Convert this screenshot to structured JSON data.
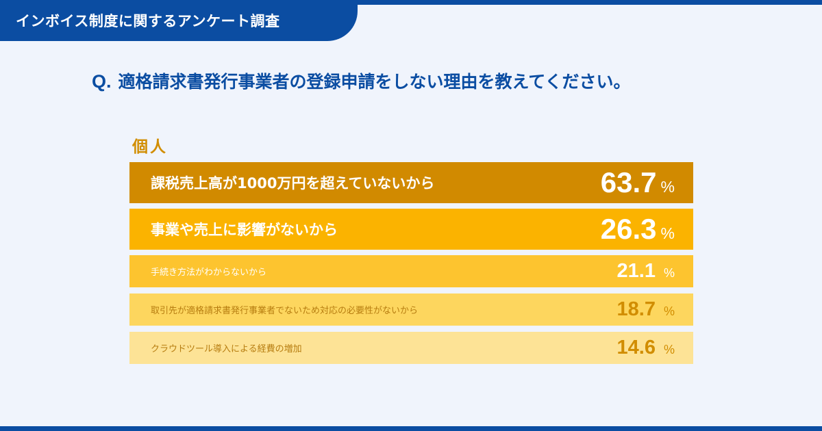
{
  "header": {
    "title": "インボイス制度に関するアンケート調査"
  },
  "question": {
    "prefix": "Q.",
    "text": "適格請求書発行事業者の登録申請をしない理由を教えてください。"
  },
  "group": {
    "label": "個人"
  },
  "colors": {
    "brand_blue": "#0b4da2",
    "background": "#f0f4fc",
    "accent_orange": "#d18d00",
    "bar_1": "#d18a00",
    "bar_2": "#fbb300",
    "bar_3": "#fdc42f",
    "bar_4": "#fdd65e",
    "bar_5": "#fde396",
    "text_dark_value": "#d18d00"
  },
  "chart_data": {
    "type": "bar",
    "unit": "%",
    "categories": [
      "課税売上高が1000万円を超えていないから",
      "事業や売上に影響がないから",
      "手続き方法がわからないから",
      "取引先が適格請求書発行事業者でないため対応の必要性がないから",
      "クラウドツール導入による経費の増加"
    ],
    "values": [
      63.7,
      26.3,
      21.1,
      18.7,
      14.6
    ],
    "value_labels": [
      "63.7",
      "26.3",
      "21.1",
      "18.7",
      "14.6"
    ]
  }
}
